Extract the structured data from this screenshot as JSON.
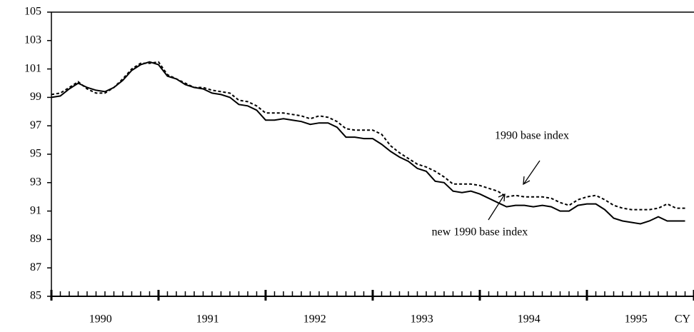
{
  "chart_data": {
    "type": "line",
    "categories": [
      null,
      null,
      null,
      null,
      null,
      null,
      "1990",
      null,
      null,
      null,
      null,
      null,
      null,
      null,
      null,
      null,
      null,
      null,
      "1991",
      null,
      null,
      null,
      null,
      null,
      null,
      null,
      null,
      null,
      null,
      null,
      "1992",
      null,
      null,
      null,
      null,
      null,
      null,
      null,
      null,
      null,
      null,
      null,
      "1993",
      null,
      null,
      null,
      null,
      null,
      null,
      null,
      null,
      null,
      null,
      null,
      "1994",
      null,
      null,
      null,
      null,
      null,
      null,
      null,
      null,
      null,
      null,
      null,
      "1995",
      null,
      null,
      null,
      null,
      null
    ],
    "x_label": "CY",
    "series": [
      {
        "name": "new 1990 base index",
        "color": "#000000",
        "dash": false,
        "values": [
          99.0,
          99.1,
          99.6,
          100.0,
          99.7,
          99.5,
          99.4,
          99.7,
          100.2,
          100.9,
          101.3,
          101.5,
          101.3,
          100.5,
          100.3,
          99.9,
          99.7,
          99.6,
          99.3,
          99.2,
          99.0,
          98.5,
          98.4,
          98.1,
          97.4,
          97.4,
          97.5,
          97.4,
          97.3,
          97.1,
          97.2,
          97.2,
          96.9,
          96.2,
          96.2,
          96.1,
          96.1,
          95.7,
          95.2,
          94.8,
          94.5,
          94.0,
          93.8,
          93.1,
          93.0,
          92.4,
          92.3,
          92.4,
          92.2,
          91.9,
          91.6,
          91.3,
          91.4,
          91.4,
          91.3,
          91.4,
          91.3,
          91.0,
          91.0,
          91.4,
          91.5,
          91.5,
          91.1,
          90.5,
          90.3,
          90.2,
          90.1,
          90.3,
          90.6,
          90.3,
          90.3,
          90.3
        ]
      },
      {
        "name": "1990 base index",
        "color": "#000000",
        "dash": true,
        "values": [
          99.2,
          99.3,
          99.7,
          100.1,
          99.6,
          99.3,
          99.3,
          99.7,
          100.3,
          101.0,
          101.4,
          101.4,
          101.5,
          100.6,
          100.3,
          100.0,
          99.7,
          99.7,
          99.5,
          99.4,
          99.3,
          98.8,
          98.7,
          98.4,
          97.9,
          97.9,
          97.9,
          97.8,
          97.7,
          97.5,
          97.7,
          97.6,
          97.3,
          96.8,
          96.7,
          96.7,
          96.7,
          96.4,
          95.6,
          95.1,
          94.7,
          94.3,
          94.1,
          93.8,
          93.4,
          92.9,
          92.9,
          92.9,
          92.8,
          92.6,
          92.4,
          92.0,
          92.1,
          92.0,
          92.0,
          92.0,
          91.9,
          91.6,
          91.4,
          91.8,
          92.0,
          92.1,
          91.8,
          91.4,
          91.2,
          91.1,
          91.1,
          91.1,
          91.2,
          91.5,
          91.2,
          91.2
        ]
      }
    ],
    "ylim": [
      85,
      105
    ],
    "yticks": [
      85,
      87,
      89,
      91,
      93,
      95,
      97,
      99,
      101,
      103,
      105
    ]
  }
}
